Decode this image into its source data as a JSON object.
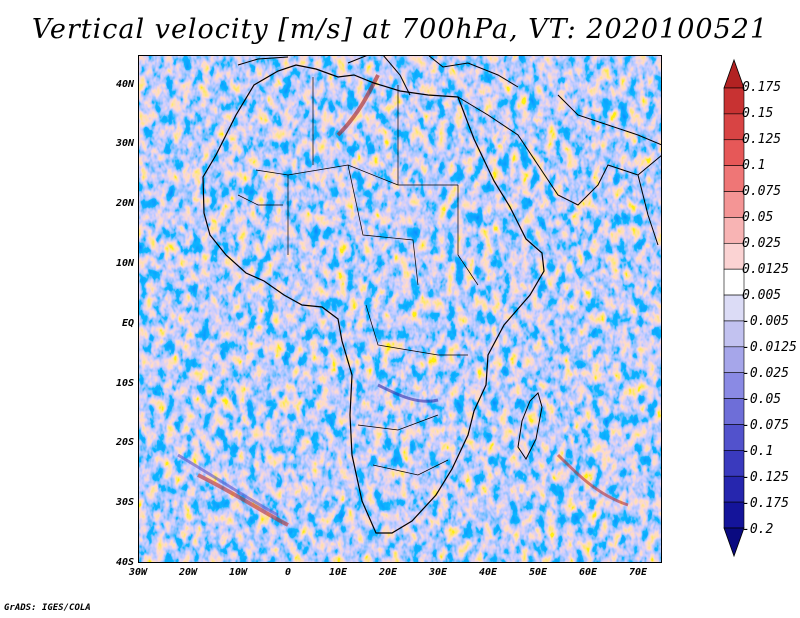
{
  "title": "Vertical velocity [m/s] at 700hPa, VT: 2020100521",
  "footer": "GrADS: IGES/COLA",
  "map": {
    "variable": "Vertical velocity",
    "units": "m/s",
    "level": "700hPa",
    "valid_time": "2020100521",
    "region": "Africa",
    "lon_range": [
      -30,
      75
    ],
    "lat_range": [
      -40,
      45
    ],
    "lat_labels": [
      "40N",
      "30N",
      "20N",
      "10N",
      "EQ",
      "10S",
      "20S",
      "30S",
      "40S"
    ],
    "lon_labels": [
      "30W",
      "20W",
      "10W",
      "0",
      "10E",
      "20E",
      "30E",
      "40E",
      "50E",
      "60E",
      "70E"
    ]
  },
  "colorbar": {
    "labels": [
      "0.175",
      "0.15",
      "0.125",
      "0.1",
      "0.075",
      "0.05",
      "0.025",
      "0.0125",
      "0.005",
      "-0.005",
      "-0.0125",
      "-0.025",
      "-0.05",
      "-0.075",
      "-0.1",
      "-0.125",
      "-0.175",
      "-0.2"
    ],
    "colors": [
      "#b22222",
      "#c83232",
      "#d84444",
      "#e65858",
      "#ef7676",
      "#f49595",
      "#f8b4b4",
      "#fbd3d3",
      "#ffffff",
      "#dcdcf6",
      "#c2c2f0",
      "#a6a6ea",
      "#8a8ae4",
      "#6e6ed8",
      "#5252cc",
      "#3a3abe",
      "#2626ae",
      "#14149a",
      "#0a0a80"
    ]
  }
}
